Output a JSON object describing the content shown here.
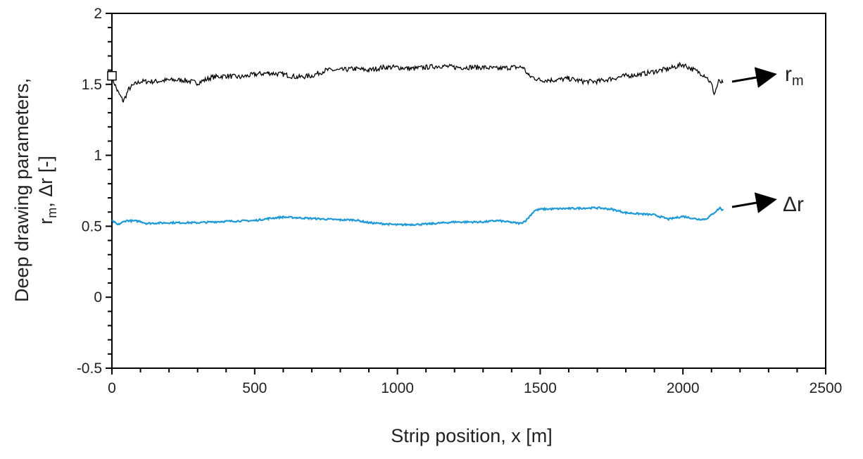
{
  "chart_data": {
    "type": "line",
    "xlabel": "Strip position, x [m]",
    "ylabel_line1": "Deep drawing parameters,",
    "ylabel_line2_parts": [
      "r",
      "m",
      ", Δr [-]"
    ],
    "xlim": [
      0,
      2500
    ],
    "ylim": [
      -0.5,
      2
    ],
    "xticks": [
      "0",
      "500",
      "1000",
      "1500",
      "2000",
      "2500"
    ],
    "yticks": [
      "-0.5",
      "0",
      "0.5",
      "1",
      "1.5",
      "2"
    ],
    "grid": false,
    "colors": {
      "rm": "#000000",
      "dr": "#1f9ad6"
    },
    "annotations": {
      "rm_base": "r",
      "rm_sub": "m",
      "dr": "Δr"
    },
    "marker": {
      "x": 0,
      "y": 1.56,
      "shape": "open-square"
    },
    "series": [
      {
        "key": "rm",
        "x": [
          0,
          20,
          40,
          60,
          80,
          100,
          150,
          200,
          250,
          300,
          350,
          400,
          450,
          500,
          550,
          600,
          650,
          700,
          750,
          800,
          850,
          900,
          950,
          1000,
          1050,
          1100,
          1150,
          1200,
          1250,
          1300,
          1350,
          1400,
          1440,
          1460,
          1500,
          1550,
          1600,
          1650,
          1700,
          1750,
          1800,
          1850,
          1900,
          1950,
          2000,
          2050,
          2080,
          2100,
          2110,
          2125,
          2140
        ],
        "y": [
          1.55,
          1.45,
          1.38,
          1.47,
          1.5,
          1.52,
          1.52,
          1.53,
          1.53,
          1.51,
          1.55,
          1.56,
          1.55,
          1.57,
          1.58,
          1.57,
          1.55,
          1.56,
          1.6,
          1.6,
          1.61,
          1.6,
          1.62,
          1.62,
          1.61,
          1.62,
          1.63,
          1.62,
          1.62,
          1.62,
          1.61,
          1.62,
          1.62,
          1.56,
          1.53,
          1.53,
          1.54,
          1.52,
          1.52,
          1.54,
          1.56,
          1.57,
          1.59,
          1.61,
          1.64,
          1.59,
          1.56,
          1.5,
          1.43,
          1.52,
          1.51
        ]
      },
      {
        "key": "dr",
        "x": [
          0,
          20,
          50,
          100,
          120,
          200,
          300,
          400,
          500,
          550,
          600,
          650,
          700,
          800,
          850,
          900,
          1000,
          1100,
          1200,
          1300,
          1350,
          1430,
          1450,
          1480,
          1500,
          1600,
          1700,
          1750,
          1800,
          1900,
          1950,
          2000,
          2050,
          2080,
          2100,
          2130,
          2140
        ],
        "y": [
          0.54,
          0.51,
          0.54,
          0.535,
          0.52,
          0.525,
          0.525,
          0.535,
          0.54,
          0.555,
          0.565,
          0.56,
          0.555,
          0.545,
          0.545,
          0.525,
          0.51,
          0.515,
          0.53,
          0.53,
          0.54,
          0.52,
          0.54,
          0.61,
          0.62,
          0.625,
          0.63,
          0.62,
          0.595,
          0.58,
          0.55,
          0.57,
          0.55,
          0.55,
          0.58,
          0.63,
          0.61
        ]
      }
    ]
  }
}
